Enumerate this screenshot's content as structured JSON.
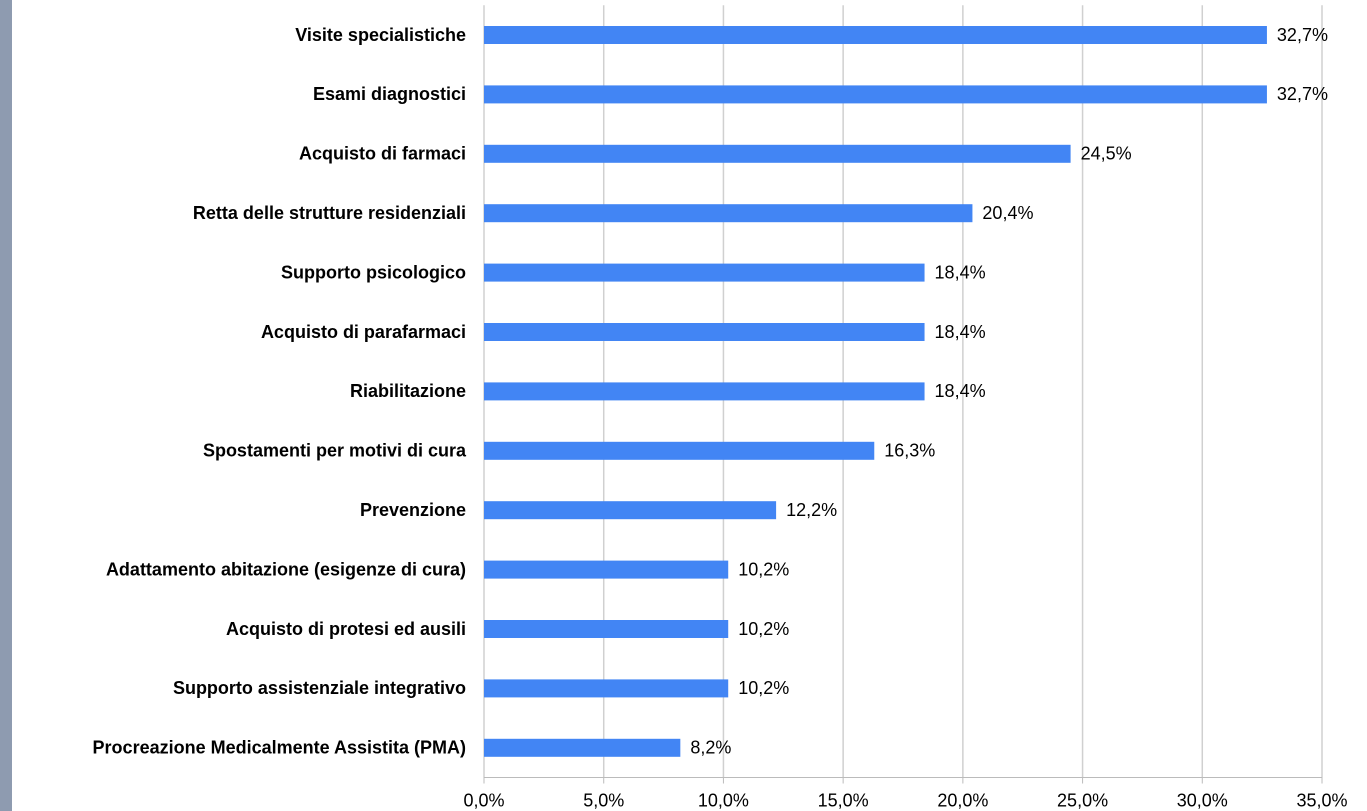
{
  "chart_data": {
    "type": "hbar",
    "categories": [
      "Visite specialistiche",
      "Esami diagnostici",
      "Acquisto di farmaci",
      "Retta delle strutture residenziali",
      "Supporto psicologico",
      "Acquisto di parafarmaci",
      "Riabilitazione",
      "Spostamenti per motivi di cura",
      "Prevenzione",
      "Adattamento abitazione (esigenze di cura)",
      "Acquisto di protesi ed ausili",
      "Supporto assistenziale integrativo",
      "Procreazione Medicalmente Assistita (PMA)"
    ],
    "values": [
      32.7,
      32.7,
      24.5,
      20.4,
      18.4,
      18.4,
      18.4,
      16.3,
      12.2,
      10.2,
      10.2,
      10.2,
      8.2
    ],
    "value_labels": [
      "32,7%",
      "32,7%",
      "24,5%",
      "20,4%",
      "18,4%",
      "18,4%",
      "18,4%",
      "16,3%",
      "12,2%",
      "10,2%",
      "10,2%",
      "10,2%",
      "8,2%"
    ],
    "color": "#4285f4",
    "xlim": [
      0,
      35
    ],
    "xticks": [
      {
        "value": 0,
        "label": "0,0%"
      },
      {
        "value": 5,
        "label": "5,0%"
      },
      {
        "value": 10,
        "label": "10,0%"
      },
      {
        "value": 15,
        "label": "15,0%"
      },
      {
        "value": 20,
        "label": "20,0%"
      },
      {
        "value": 25,
        "label": "25,0%"
      },
      {
        "value": 30,
        "label": "30,0%"
      },
      {
        "value": 35,
        "label": "35,0%"
      }
    ],
    "grid": true
  }
}
